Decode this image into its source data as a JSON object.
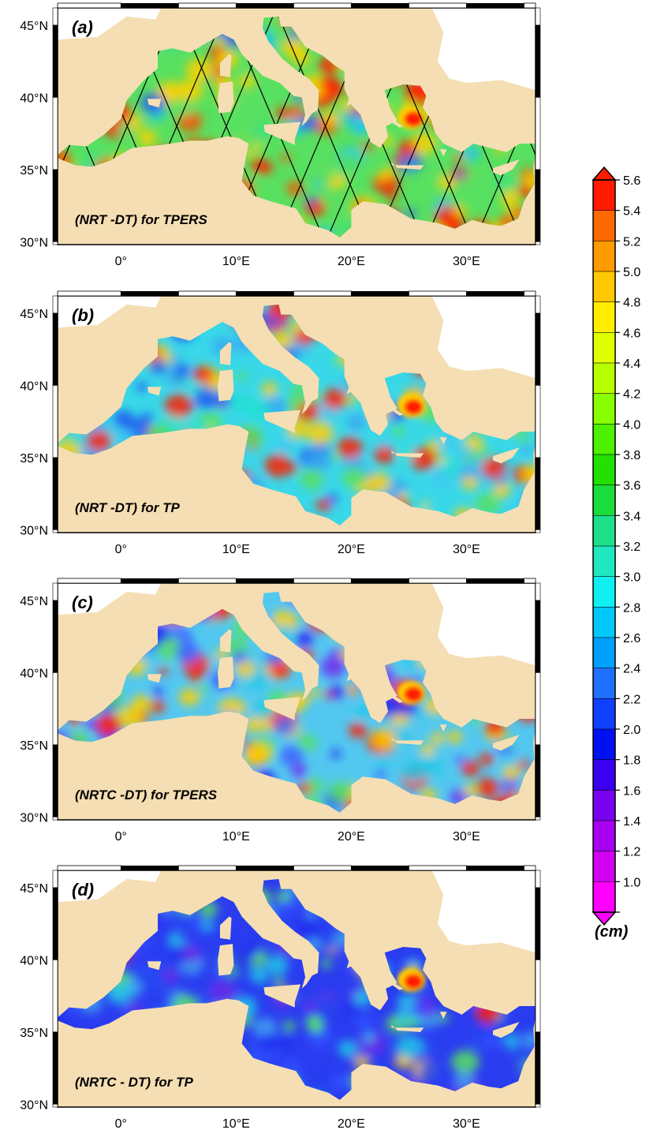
{
  "panels": [
    {
      "label": "(a)",
      "title": "(NRT -DT) for TPERS",
      "tracks": true
    },
    {
      "label": "(b)",
      "title": "(NRT -DT) for TP",
      "tracks": false
    },
    {
      "label": "(c)",
      "title": "(NRTC -DT) for TPERS",
      "tracks": false
    },
    {
      "label": "(d)",
      "title": "(NRTC - DT) for TP",
      "tracks": false
    }
  ],
  "axes": {
    "lat_labels": [
      "45°N",
      "40°N",
      "35°N",
      "30°N"
    ],
    "lon_labels": [
      "0°",
      "10°E",
      "20°E",
      "30°E"
    ],
    "lon_range": [
      -5.5,
      36.0
    ],
    "lat_range": [
      29.8,
      46.2
    ]
  },
  "colorbar": {
    "unit": "(cm)",
    "ticks": [
      "5.6",
      "5.4",
      "5.2",
      "5.0",
      "4.8",
      "4.6",
      "4.4",
      "4.2",
      "4.0",
      "3.8",
      "3.6",
      "3.4",
      "3.2",
      "3.0",
      "2.8",
      "2.6",
      "2.4",
      "2.2",
      "2.0",
      "1.8",
      "1.6",
      "1.4",
      "1.2",
      "1.0"
    ],
    "colors": [
      "#ff1a00",
      "#ff6a00",
      "#ff9a00",
      "#ffc800",
      "#ffee00",
      "#e0ff00",
      "#b8ff00",
      "#88ff00",
      "#4cf000",
      "#22e000",
      "#1adc3c",
      "#1ee08a",
      "#20e8c0",
      "#10f0f0",
      "#00c8ff",
      "#00a0ff",
      "#2070ff",
      "#1040ff",
      "#0010f0",
      "#3a00f0",
      "#7a00f0",
      "#a800f0",
      "#d000f0",
      "#ff00ff"
    ]
  },
  "colors": {
    "land": "#f5deb3",
    "sea_base": [
      "#58e060",
      "#38d8e8",
      "#52c8f0",
      "#2a3cf0"
    ],
    "hotspot": "#ff2000",
    "white_land": "#ffffff"
  }
}
